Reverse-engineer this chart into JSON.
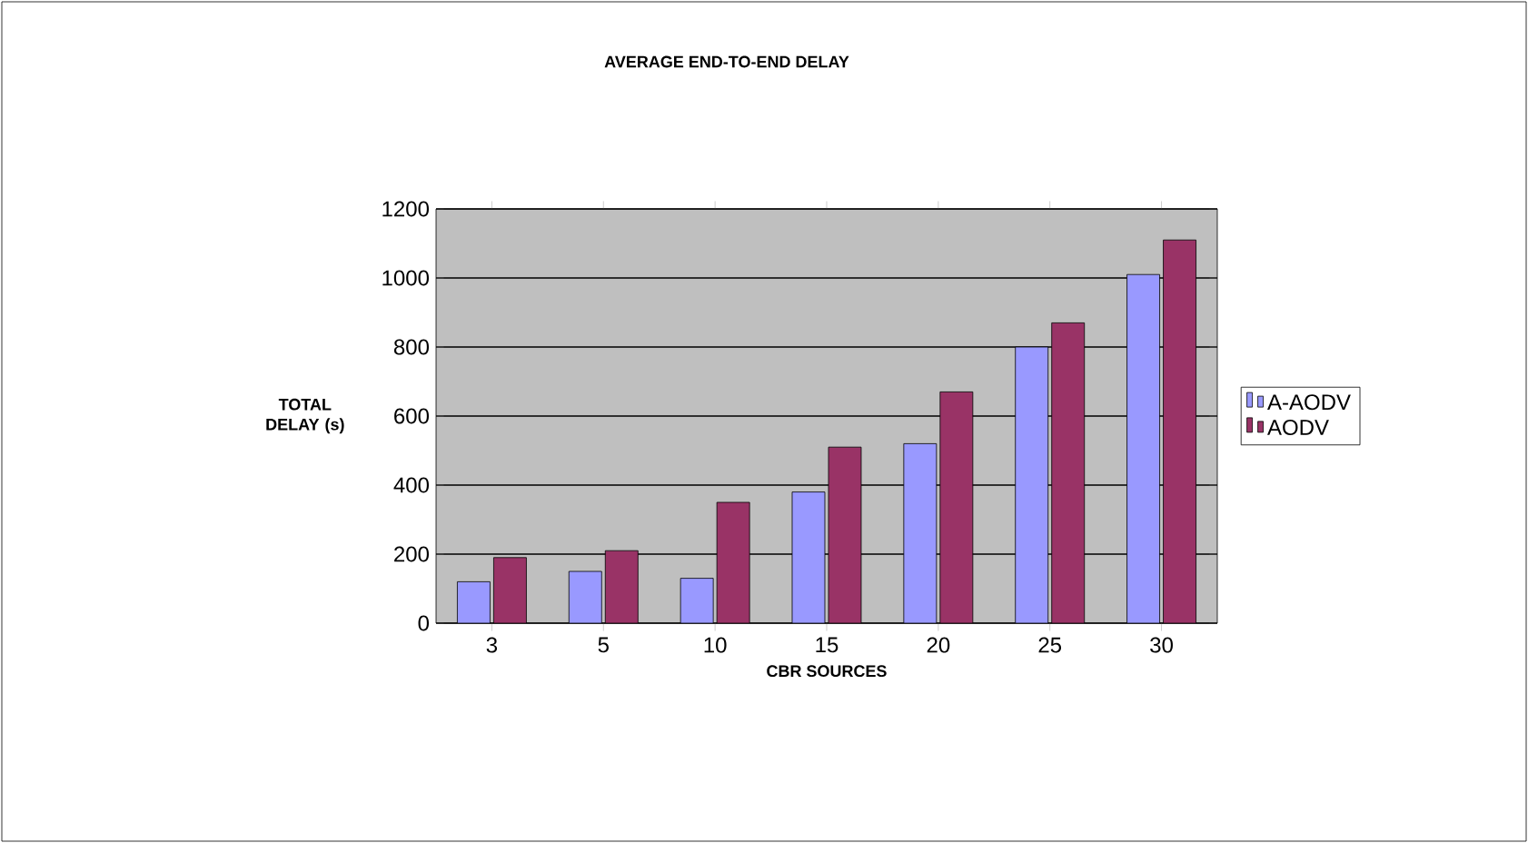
{
  "chart_data": {
    "type": "bar",
    "title": "AVERAGE END-TO-END DELAY",
    "xlabel": "CBR SOURCES",
    "ylabel": "TOTAL DELAY (s)",
    "categories": [
      "3",
      "5",
      "10",
      "15",
      "20",
      "25",
      "30"
    ],
    "series": [
      {
        "name": "A-AODV",
        "color": "#9999ff",
        "values": [
          120,
          150,
          130,
          380,
          520,
          800,
          1010
        ]
      },
      {
        "name": "AODV",
        "color": "#993366",
        "values": [
          190,
          210,
          350,
          510,
          670,
          870,
          1110
        ]
      }
    ],
    "ylim": [
      0,
      1200
    ],
    "yticks": [
      0,
      200,
      400,
      600,
      800,
      1000,
      1200
    ],
    "grid": "y",
    "legend": "right"
  }
}
